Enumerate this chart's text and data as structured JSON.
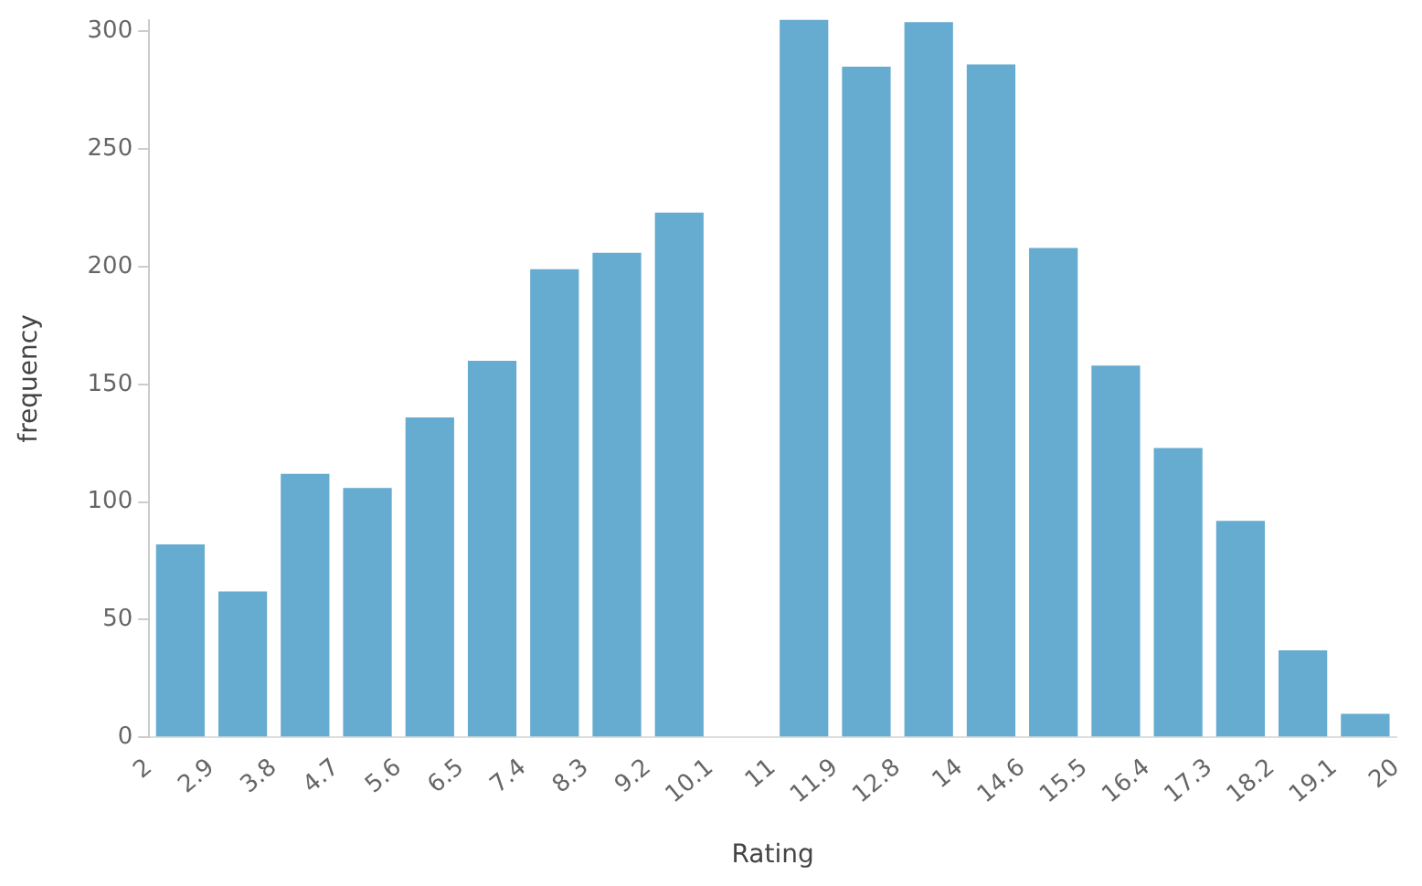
{
  "chart_data": {
    "type": "histogram",
    "xlabel": "Rating",
    "ylabel": "frequency",
    "bins": [
      2,
      2.9,
      3.8,
      4.7,
      5.6,
      6.5,
      7.4,
      8.3,
      9.2,
      10.1,
      11,
      11.9,
      12.8,
      13.7,
      14.6,
      15.5,
      16.4,
      17.3,
      18.2,
      19.1,
      20
    ],
    "values": [
      82,
      62,
      112,
      106,
      136,
      160,
      199,
      206,
      223,
      0,
      305,
      285,
      304,
      286,
      208,
      158,
      123,
      92,
      37,
      10
    ],
    "color": "#66abd0",
    "xlim": [
      2,
      20
    ],
    "xticks": [
      2,
      2.9,
      3.8,
      4.7,
      5.6,
      6.5,
      7.4,
      8.3,
      9.2,
      10.1,
      11,
      11.9,
      12.8,
      {
        "value": 13.7,
        "label": "14"
      },
      14.6,
      15.5,
      16.4,
      17.3,
      18.2,
      19.1,
      20
    ],
    "ylim": [
      0,
      305
    ],
    "yticks": [
      0,
      50,
      100,
      150,
      200,
      250,
      300
    ],
    "grid": false,
    "legend": false
  }
}
